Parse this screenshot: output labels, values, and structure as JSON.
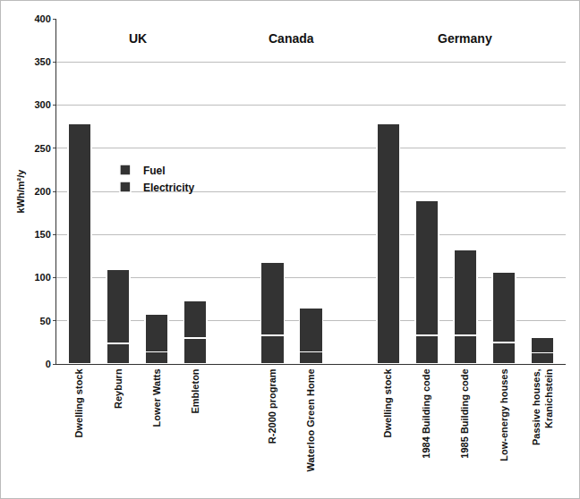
{
  "chart_data": {
    "type": "bar",
    "stacked": true,
    "y_label": "kWh/m²/y",
    "annotations": [
      "UK",
      "Canada",
      "Germany"
    ],
    "categories": [
      "Dwelling stock",
      "Reyburn",
      "Lower Watts",
      "Embleton",
      null,
      "R-2000 program",
      "Waterloo Green Home",
      null,
      "Dwelling stock",
      "1984 Building code",
      "1985 Building code",
      "Low-energy houses",
      "Passive houses, Kranichstein"
    ],
    "series": [
      {
        "name": "Electricity",
        "color": "#333333",
        "values": [
          null,
          24,
          14,
          30,
          null,
          33,
          14,
          null,
          null,
          33,
          33,
          25,
          13
        ]
      },
      {
        "name": "Fuel",
        "color": "#333333",
        "values": [
          278,
          86,
          44,
          43,
          null,
          85,
          51,
          null,
          278,
          156,
          99,
          82,
          18
        ]
      }
    ],
    "ylim": [
      0,
      400
    ],
    "yticks": [
      0,
      50,
      100,
      150,
      200,
      250,
      300,
      350,
      400
    ],
    "grid": true,
    "legend": "left"
  }
}
